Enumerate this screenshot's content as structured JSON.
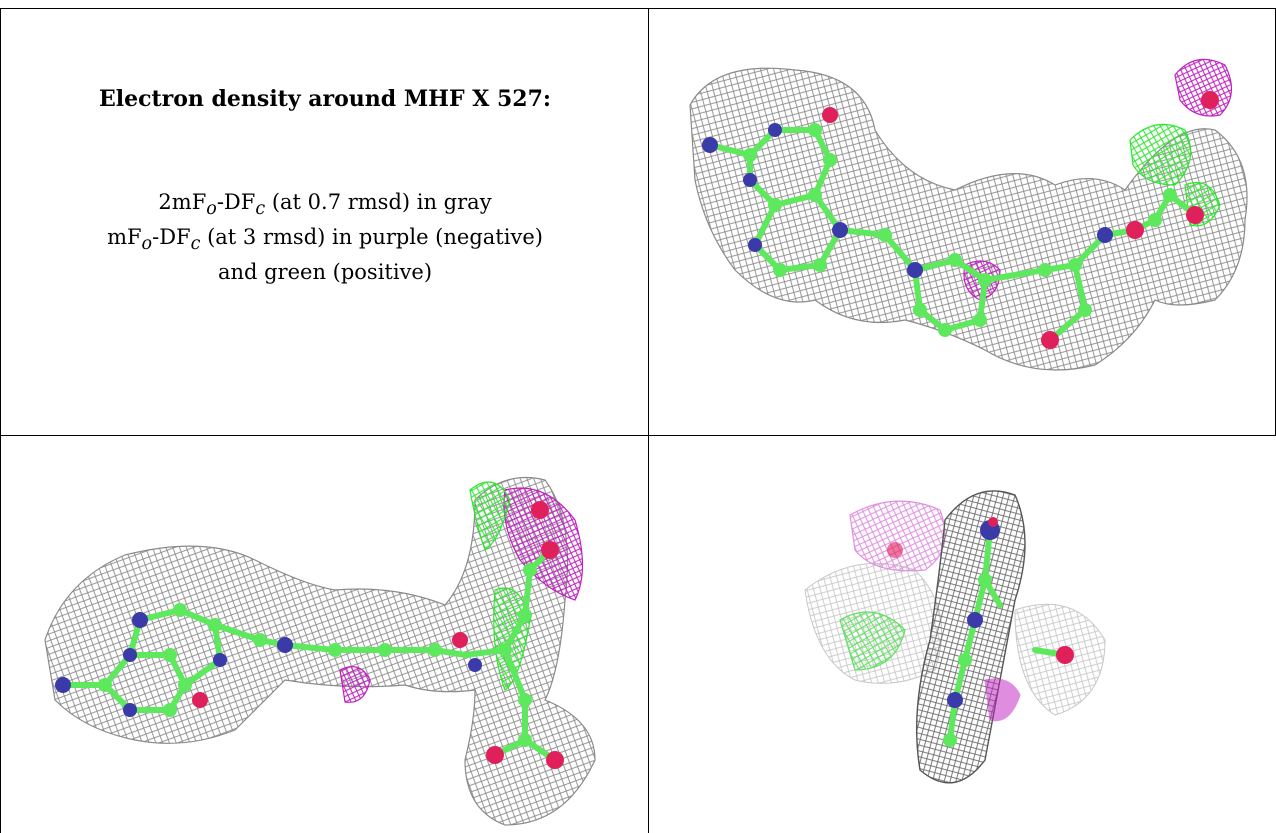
{
  "caption": {
    "title": "Electron density around MHF X 527:",
    "line1_prefix": "2mF",
    "line1_sub_o": "o",
    "line1_mid": "-DF",
    "line1_sub_c": "c",
    "line1_suffix": " (at 0.7 rmsd) in gray",
    "line2_prefix": "mF",
    "line2_sub_o": "o",
    "line2_mid": "-DF",
    "line2_sub_c": "c",
    "line2_suffix": " (at 3 rmsd) in purple (negative)",
    "line3": "and green (positive)"
  },
  "colors": {
    "density_2fofc": "#8a8a8a",
    "density_negative": "#c020c0",
    "density_positive": "#2ee62e",
    "carbon_atom": "#5ee85e",
    "nitrogen_atom": "#3a3aa8",
    "oxygen_atom": "#e0205a"
  },
  "panels": [
    {
      "view": "top-view"
    },
    {
      "view": "side-view"
    },
    {
      "view": "end-view"
    }
  ]
}
